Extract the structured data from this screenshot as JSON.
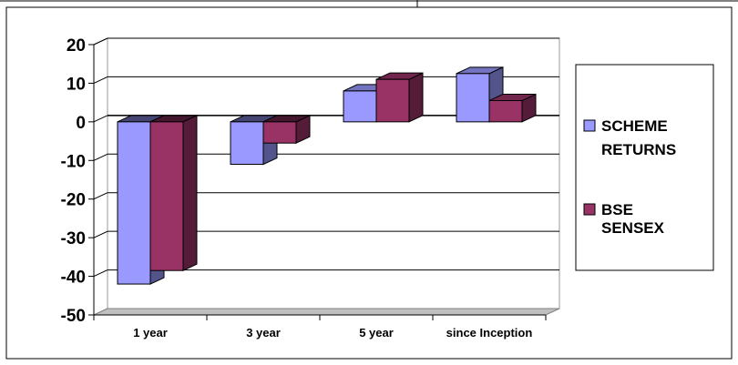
{
  "chart_data": {
    "type": "bar",
    "title": "",
    "xlabel": "",
    "ylabel": "",
    "categories": [
      "1 year",
      "3 year",
      "5 year",
      "since Inception"
    ],
    "series": [
      {
        "name": "SCHEME RETURNS",
        "values": [
          -42,
          -11,
          8,
          12.5
        ],
        "color": "#9999ff"
      },
      {
        "name": "BSE SENSEX",
        "values": [
          -38.5,
          -5.5,
          11,
          5.5
        ],
        "color": "#993366"
      }
    ],
    "ylim": [
      -50,
      20
    ],
    "yticks": [
      "20",
      "10",
      "0",
      "-10",
      "-20",
      "-30",
      "-40",
      "-50"
    ],
    "ytick_values": [
      20,
      10,
      0,
      -10,
      -20,
      -30,
      -40,
      -50
    ],
    "grid": true,
    "legend": "right",
    "style": "3d-clustered-column"
  }
}
